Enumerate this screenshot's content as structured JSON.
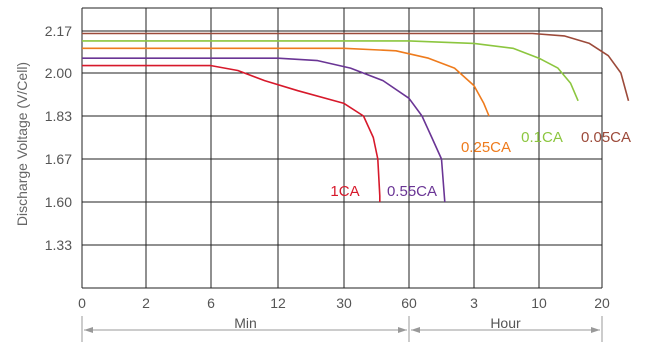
{
  "chart_data": {
    "type": "line",
    "ylabel": "Discharge Voltage (V/Cell)",
    "y_ticks": [
      "2.17",
      "2.00",
      "1.83",
      "1.67",
      "1.60",
      "1.33"
    ],
    "x_ticks": [
      "0",
      "2",
      "6",
      "12",
      "30",
      "60",
      "3",
      "10",
      "20"
    ],
    "x_segments": [
      {
        "label": "Min",
        "from": "0",
        "to": "60"
      },
      {
        "label": "Hour",
        "from": "60",
        "to": "20"
      }
    ],
    "grid": true,
    "series": [
      {
        "name": "1CA",
        "color": "#d7192b",
        "x": [
          0,
          0.45,
          1.45,
          2.0,
          2.4,
          2.8,
          3.3,
          4.0,
          4.3,
          4.45,
          4.52,
          4.55,
          4.55
        ],
        "y": [
          2.03,
          2.03,
          2.03,
          2.03,
          2.01,
          1.97,
          1.93,
          1.88,
          1.83,
          1.75,
          1.67,
          1.61,
          1.6
        ]
      },
      {
        "name": "0.55CA",
        "color": "#6a3595",
        "x": [
          0,
          1.5,
          2.5,
          3.0,
          3.6,
          4.1,
          4.6,
          5.0,
          5.2,
          5.35,
          5.5,
          5.55
        ],
        "y": [
          2.06,
          2.06,
          2.06,
          2.06,
          2.05,
          2.02,
          1.97,
          1.9,
          1.83,
          1.75,
          1.67,
          1.6
        ]
      },
      {
        "name": "0.25CA",
        "color": "#ee7b1d",
        "x": [
          0,
          2.0,
          3.2,
          4.0,
          4.8,
          5.3,
          5.7,
          6.0,
          6.15,
          6.23
        ],
        "y": [
          2.1,
          2.1,
          2.1,
          2.1,
          2.09,
          2.06,
          2.02,
          1.95,
          1.88,
          1.83
        ]
      },
      {
        "name": "0.1CA",
        "color": "#8cc63f",
        "x": [
          0,
          3.0,
          5.0,
          6.0,
          6.6,
          7.0,
          7.3,
          7.5,
          7.62
        ],
        "y": [
          2.13,
          2.13,
          2.13,
          2.12,
          2.1,
          2.06,
          2.02,
          1.96,
          1.89
        ]
      },
      {
        "name": "0.05CA",
        "color": "#9c4a3a",
        "x": [
          0,
          3.0,
          6.0,
          6.9,
          7.4,
          7.8,
          8.1,
          8.3,
          8.42
        ],
        "y": [
          2.16,
          2.16,
          2.16,
          2.16,
          2.15,
          2.12,
          2.07,
          2.0,
          1.89
        ]
      }
    ]
  }
}
